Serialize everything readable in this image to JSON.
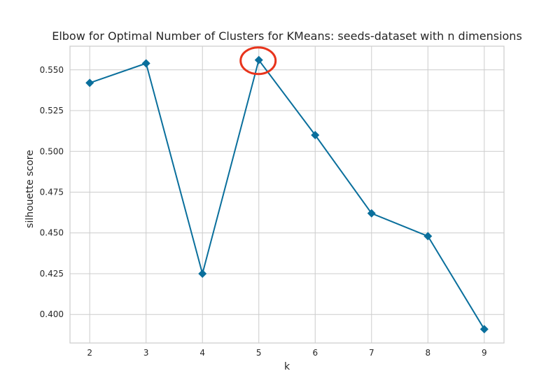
{
  "chart_data": {
    "type": "line",
    "title": "Elbow for Optimal Number of Clusters for KMeans: seeds-dataset with n dimensions",
    "xlabel": "k",
    "ylabel": "silhouette score",
    "x": [
      2,
      3,
      4,
      5,
      6,
      7,
      8,
      9
    ],
    "series": [
      {
        "values": [
          0.542,
          0.554,
          0.425,
          0.556,
          0.51,
          0.462,
          0.448,
          0.391
        ],
        "color": "#0a6f9c",
        "marker": "diamond"
      }
    ],
    "xlim": [
      1.65,
      9.35
    ],
    "ylim": [
      0.3825,
      0.5645
    ],
    "xticks": [
      2,
      3,
      4,
      5,
      6,
      7,
      8,
      9
    ],
    "yticks": [
      0.4,
      0.425,
      0.45,
      0.475,
      0.5,
      0.525,
      0.55
    ],
    "ytick_labels": [
      "0.400",
      "0.425",
      "0.450",
      "0.475",
      "0.500",
      "0.525",
      "0.550"
    ],
    "grid": true,
    "highlight": {
      "x": 5,
      "y": 0.556,
      "color": "#e8341c",
      "shape": "ellipse"
    }
  }
}
